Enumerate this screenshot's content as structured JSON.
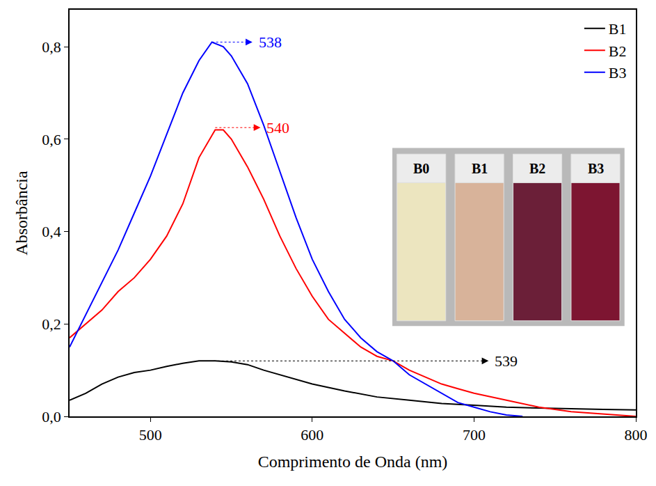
{
  "chart_data": {
    "type": "line",
    "x_label": "Comprimento de Onda (nm)",
    "y_label": "Absorbância",
    "xlim": [
      450,
      800
    ],
    "xticks": [
      500,
      600,
      700,
      800
    ],
    "ylim": [
      0,
      0.88
    ],
    "yticks": [
      {
        "value": 0,
        "label": "0,0"
      },
      {
        "value": 0.2,
        "label": "0,2"
      },
      {
        "value": 0.4,
        "label": "0,4"
      },
      {
        "value": 0.6,
        "label": "0,6"
      },
      {
        "value": 0.8,
        "label": "0,8"
      }
    ],
    "grid": false,
    "legend": "upper right",
    "series": [
      {
        "name": "B1",
        "color": "#000000",
        "x": [
          450,
          460,
          470,
          480,
          490,
          500,
          510,
          520,
          530,
          540,
          550,
          560,
          570,
          580,
          590,
          600,
          620,
          640,
          660,
          680,
          700,
          720,
          740,
          760,
          780,
          800
        ],
        "values": [
          0.035,
          0.05,
          0.07,
          0.085,
          0.095,
          0.1,
          0.108,
          0.115,
          0.12,
          0.12,
          0.118,
          0.112,
          0.1,
          0.09,
          0.08,
          0.07,
          0.055,
          0.042,
          0.035,
          0.028,
          0.024,
          0.02,
          0.018,
          0.016,
          0.015,
          0.014
        ]
      },
      {
        "name": "B2",
        "color": "#ff0000",
        "x": [
          450,
          460,
          470,
          480,
          490,
          500,
          510,
          520,
          530,
          540,
          545,
          550,
          560,
          570,
          580,
          590,
          600,
          610,
          620,
          630,
          640,
          650,
          660,
          670,
          680,
          690,
          700,
          720,
          740,
          760,
          780,
          800
        ],
        "values": [
          0.17,
          0.2,
          0.23,
          0.27,
          0.3,
          0.34,
          0.39,
          0.46,
          0.56,
          0.62,
          0.62,
          0.6,
          0.54,
          0.47,
          0.39,
          0.32,
          0.26,
          0.21,
          0.18,
          0.15,
          0.13,
          0.12,
          0.1,
          0.085,
          0.07,
          0.06,
          0.05,
          0.035,
          0.02,
          0.01,
          0.005,
          0.0
        ]
      },
      {
        "name": "B3",
        "color": "#0000ff",
        "x": [
          450,
          460,
          470,
          480,
          490,
          500,
          510,
          520,
          530,
          538,
          545,
          550,
          560,
          570,
          580,
          590,
          600,
          610,
          620,
          630,
          640,
          650,
          660,
          670,
          680,
          690,
          700,
          710,
          720,
          730
        ],
        "values": [
          0.15,
          0.22,
          0.29,
          0.36,
          0.44,
          0.52,
          0.61,
          0.7,
          0.77,
          0.81,
          0.8,
          0.78,
          0.72,
          0.63,
          0.53,
          0.43,
          0.34,
          0.27,
          0.21,
          0.17,
          0.14,
          0.12,
          0.09,
          0.07,
          0.05,
          0.03,
          0.02,
          0.01,
          0.003,
          0.0
        ]
      }
    ],
    "annotations": [
      {
        "text": "538",
        "x": 538,
        "y": 0.81,
        "color": "#0000ff"
      },
      {
        "text": "540",
        "x": 540,
        "y": 0.625,
        "color": "#ff0000"
      },
      {
        "text": "539",
        "x": 539,
        "y": 0.12,
        "color": "#000000"
      }
    ],
    "inset_labels": [
      "B0",
      "B1",
      "B2",
      "B3"
    ]
  }
}
